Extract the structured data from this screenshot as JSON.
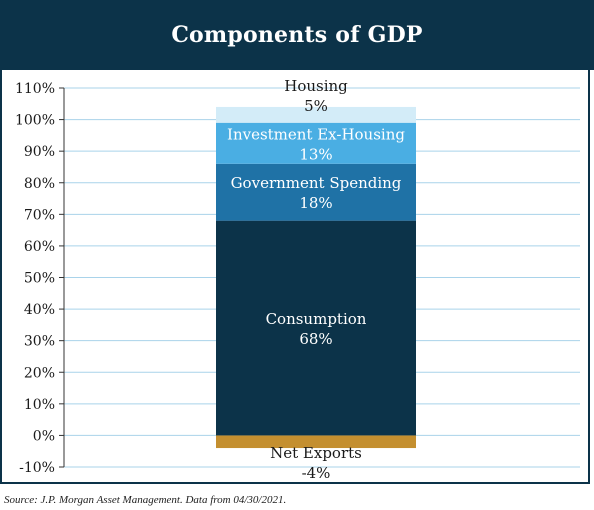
{
  "colors": {
    "header_bg": "#0c3349",
    "grid": "#a9d3ea",
    "consumption": "#0c3349",
    "government": "#1f72a6",
    "investment": "#4aaee3",
    "housing": "#d3ecf8",
    "net_exports": "#c48f2f"
  },
  "chart_data": {
    "type": "bar",
    "stacked": true,
    "title": "Components of GDP",
    "xlabel": "",
    "ylabel": "",
    "ylim": [
      -10,
      110
    ],
    "y_ticks": [
      -10,
      0,
      10,
      20,
      30,
      40,
      50,
      60,
      70,
      80,
      90,
      100,
      110
    ],
    "y_tick_labels": [
      "-10%",
      "0%",
      "10%",
      "20%",
      "30%",
      "40%",
      "50%",
      "60%",
      "70%",
      "80%",
      "90%",
      "100%",
      "110%"
    ],
    "grid": true,
    "legend": "none",
    "segments": [
      {
        "name": "Net Exports",
        "value": -4,
        "label": "-4%",
        "color": "#c48f2f"
      },
      {
        "name": "Consumption",
        "value": 68,
        "label": "68%",
        "color": "#0c3349"
      },
      {
        "name": "Government Spending",
        "value": 18,
        "label": "18%",
        "color": "#1f72a6"
      },
      {
        "name": "Investment Ex-Housing",
        "value": 13,
        "label": "13%",
        "color": "#4aaee3"
      },
      {
        "name": "Housing",
        "value": 5,
        "label": "5%",
        "color": "#d3ecf8"
      }
    ]
  },
  "footer": {
    "source": "Source: J.P. Morgan Asset Management. Data from 04/30/2021."
  }
}
